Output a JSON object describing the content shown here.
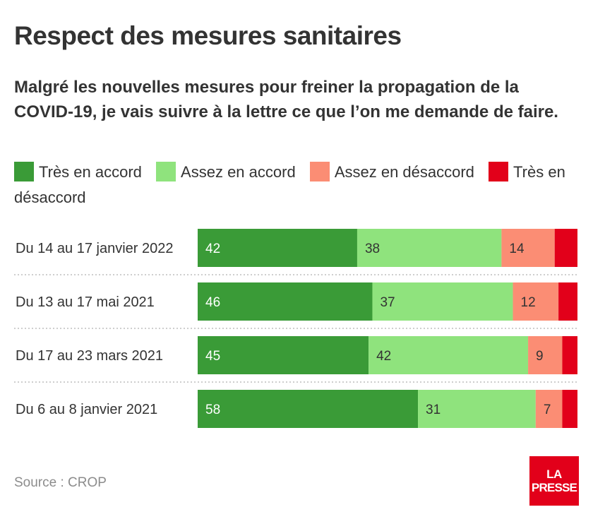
{
  "title": "Respect des mesures sanitaires",
  "subtitle": "Malgré les nouvelles mesures pour freiner la propagation de la COVID-19, je vais suivre à la lettre ce que l’on me demande de faire.",
  "legend": [
    {
      "label": "Très en accord",
      "color": "#3a9b37"
    },
    {
      "label": "Assez en accord",
      "color": "#8fe37d"
    },
    {
      "label": "Assez en désaccord",
      "color": "#fb8d74"
    },
    {
      "label": "Très en désaccord",
      "color": "#e2001a"
    }
  ],
  "chart_data": {
    "type": "bar",
    "orientation": "horizontal",
    "stacked": true,
    "categories": [
      "Du 14 au 17 janvier 2022",
      "Du 13 au 17 mai 2021",
      "Du 17 au 23 mars 2021",
      "Du 6 au 8 janvier 2021"
    ],
    "series": [
      {
        "name": "Très en accord",
        "color": "#3a9b37",
        "values": [
          42,
          46,
          45,
          58
        ]
      },
      {
        "name": "Assez en accord",
        "color": "#8fe37d",
        "values": [
          38,
          37,
          42,
          31
        ]
      },
      {
        "name": "Assez en désaccord",
        "color": "#fb8d74",
        "values": [
          14,
          12,
          9,
          7
        ]
      },
      {
        "name": "Très en désaccord",
        "color": "#e2001a",
        "values": [
          6,
          5,
          4,
          4
        ]
      }
    ],
    "xlim": [
      0,
      100
    ],
    "grid": false,
    "legend_position": "top"
  },
  "source": "Source : CROP",
  "logo": {
    "line1": "LA",
    "line2": "PRESSE"
  }
}
